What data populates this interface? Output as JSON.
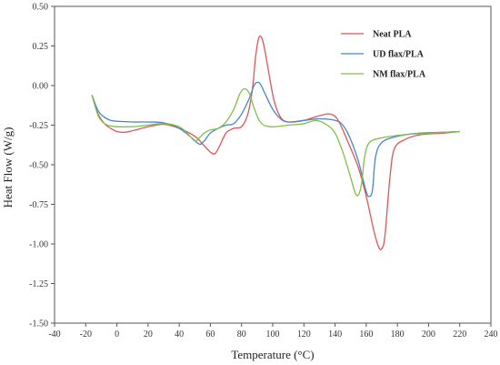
{
  "chart_data": {
    "type": "line",
    "title": "",
    "xlabel": "Temperature (°C)",
    "ylabel": "Heat Flow (W/g)",
    "xlim": [
      -40,
      240
    ],
    "ylim": [
      -1.5,
      0.5
    ],
    "x_ticks": [
      -40,
      -20,
      0,
      20,
      40,
      60,
      80,
      100,
      120,
      140,
      160,
      180,
      200,
      220,
      240
    ],
    "x_tick_labels": [
      "-40",
      "-20",
      "0",
      "20",
      "40",
      "60",
      "80",
      "100",
      "120",
      "140",
      "160",
      "180",
      "200",
      "220",
      "240"
    ],
    "y_ticks": [
      0.5,
      0.25,
      0.0,
      -0.25,
      -0.5,
      -0.75,
      -1.0,
      -1.25,
      -1.5
    ],
    "y_tick_labels": [
      "0.50",
      "0.25",
      "0.00",
      "-0.25",
      "-0.50",
      "-0.75",
      "-1.00",
      "-1.25",
      "-1.50"
    ],
    "grid": false,
    "legend_position": "top-right",
    "series": [
      {
        "name": "Neat PLA",
        "color": "#e05555",
        "points": [
          [
            -16,
            -0.06
          ],
          [
            -12,
            -0.18
          ],
          [
            -8,
            -0.24
          ],
          [
            -4,
            -0.27
          ],
          [
            0,
            -0.29
          ],
          [
            5,
            -0.295
          ],
          [
            10,
            -0.285
          ],
          [
            20,
            -0.26
          ],
          [
            30,
            -0.245
          ],
          [
            40,
            -0.27
          ],
          [
            50,
            -0.32
          ],
          [
            56,
            -0.38
          ],
          [
            60,
            -0.42
          ],
          [
            63,
            -0.43
          ],
          [
            66,
            -0.38
          ],
          [
            70,
            -0.3
          ],
          [
            75,
            -0.27
          ],
          [
            80,
            -0.26
          ],
          [
            84,
            -0.18
          ],
          [
            87,
            -0.02
          ],
          [
            89,
            0.18
          ],
          [
            91,
            0.3
          ],
          [
            93,
            0.3
          ],
          [
            95,
            0.22
          ],
          [
            98,
            0.05
          ],
          [
            101,
            -0.1
          ],
          [
            105,
            -0.2
          ],
          [
            110,
            -0.23
          ],
          [
            120,
            -0.22
          ],
          [
            130,
            -0.19
          ],
          [
            137,
            -0.18
          ],
          [
            142,
            -0.22
          ],
          [
            148,
            -0.35
          ],
          [
            155,
            -0.52
          ],
          [
            160,
            -0.7
          ],
          [
            165,
            -0.92
          ],
          [
            168,
            -1.02
          ],
          [
            170,
            -1.03
          ],
          [
            172,
            -0.95
          ],
          [
            175,
            -0.6
          ],
          [
            178,
            -0.4
          ],
          [
            185,
            -0.34
          ],
          [
            195,
            -0.31
          ],
          [
            210,
            -0.3
          ],
          [
            220,
            -0.29
          ]
        ]
      },
      {
        "name": "UD flax/PLA",
        "color": "#4a86c8",
        "points": [
          [
            -16,
            -0.06
          ],
          [
            -12,
            -0.16
          ],
          [
            -8,
            -0.2
          ],
          [
            -4,
            -0.22
          ],
          [
            0,
            -0.225
          ],
          [
            10,
            -0.23
          ],
          [
            20,
            -0.23
          ],
          [
            30,
            -0.235
          ],
          [
            40,
            -0.27
          ],
          [
            48,
            -0.33
          ],
          [
            53,
            -0.37
          ],
          [
            56,
            -0.35
          ],
          [
            60,
            -0.3
          ],
          [
            65,
            -0.27
          ],
          [
            70,
            -0.25
          ],
          [
            75,
            -0.24
          ],
          [
            80,
            -0.18
          ],
          [
            85,
            -0.08
          ],
          [
            88,
            0.0
          ],
          [
            90,
            0.02
          ],
          [
            92,
            0.01
          ],
          [
            95,
            -0.05
          ],
          [
            100,
            -0.15
          ],
          [
            105,
            -0.21
          ],
          [
            110,
            -0.23
          ],
          [
            120,
            -0.22
          ],
          [
            130,
            -0.21
          ],
          [
            140,
            -0.22
          ],
          [
            145,
            -0.25
          ],
          [
            150,
            -0.34
          ],
          [
            155,
            -0.48
          ],
          [
            160,
            -0.67
          ],
          [
            162,
            -0.7
          ],
          [
            164,
            -0.66
          ],
          [
            166,
            -0.45
          ],
          [
            170,
            -0.36
          ],
          [
            180,
            -0.32
          ],
          [
            195,
            -0.3
          ],
          [
            210,
            -0.295
          ],
          [
            220,
            -0.29
          ]
        ]
      },
      {
        "name": "NM flax/PLA",
        "color": "#7fbf4a",
        "points": [
          [
            -16,
            -0.06
          ],
          [
            -12,
            -0.19
          ],
          [
            -8,
            -0.24
          ],
          [
            -4,
            -0.255
          ],
          [
            0,
            -0.26
          ],
          [
            10,
            -0.26
          ],
          [
            20,
            -0.25
          ],
          [
            30,
            -0.24
          ],
          [
            40,
            -0.26
          ],
          [
            46,
            -0.31
          ],
          [
            50,
            -0.35
          ],
          [
            53,
            -0.33
          ],
          [
            56,
            -0.3
          ],
          [
            60,
            -0.28
          ],
          [
            65,
            -0.27
          ],
          [
            70,
            -0.23
          ],
          [
            75,
            -0.15
          ],
          [
            79,
            -0.05
          ],
          [
            82,
            -0.02
          ],
          [
            85,
            -0.05
          ],
          [
            88,
            -0.14
          ],
          [
            92,
            -0.23
          ],
          [
            98,
            -0.26
          ],
          [
            110,
            -0.25
          ],
          [
            120,
            -0.24
          ],
          [
            128,
            -0.22
          ],
          [
            135,
            -0.25
          ],
          [
            140,
            -0.3
          ],
          [
            145,
            -0.42
          ],
          [
            150,
            -0.58
          ],
          [
            153,
            -0.68
          ],
          [
            155,
            -0.69
          ],
          [
            157,
            -0.62
          ],
          [
            159,
            -0.45
          ],
          [
            162,
            -0.36
          ],
          [
            170,
            -0.33
          ],
          [
            185,
            -0.31
          ],
          [
            200,
            -0.3
          ],
          [
            220,
            -0.29
          ]
        ]
      }
    ]
  }
}
